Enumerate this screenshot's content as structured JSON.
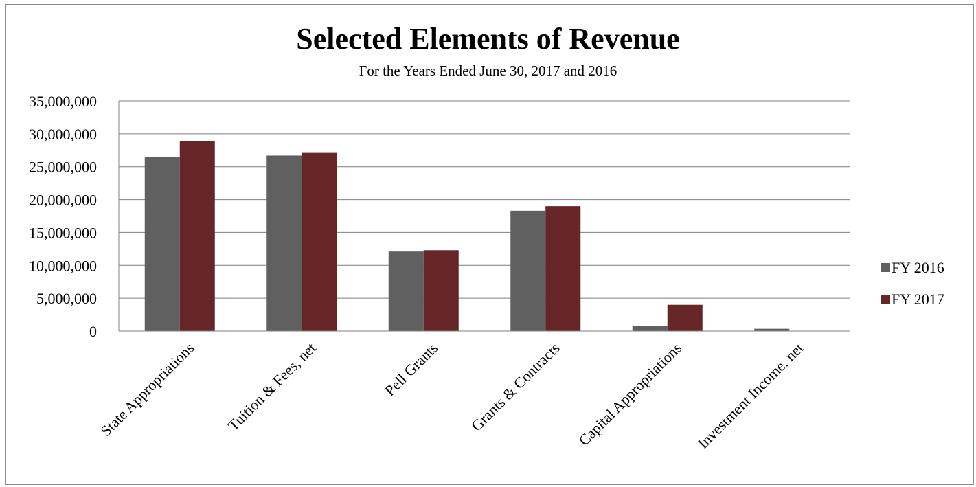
{
  "chart_data": {
    "type": "bar",
    "title": "Selected Elements of Revenue",
    "subtitle": "For the Years Ended June 30, 2017 and 2016",
    "categories": [
      "State Appropriations",
      "Tuition & Fees, net",
      "Pell Grants",
      "Grants & Contracts",
      "Capital Appropriations",
      "Investment Income, net"
    ],
    "series": [
      {
        "name": "FY 2016",
        "color": "#606060",
        "values": [
          26500000,
          26700000,
          12100000,
          18300000,
          800000,
          350000
        ]
      },
      {
        "name": "FY 2017",
        "color": "#662627",
        "values": [
          28900000,
          27100000,
          12300000,
          19000000,
          4000000,
          0
        ]
      }
    ],
    "ylim": [
      0,
      35000000
    ],
    "yticks": [
      0,
      5000000,
      10000000,
      15000000,
      20000000,
      25000000,
      30000000,
      35000000
    ],
    "ytick_labels": [
      "0",
      "5,000,000",
      "10,000,000",
      "15,000,000",
      "20,000,000",
      "25,000,000",
      "30,000,000",
      "35,000,000"
    ],
    "grid": true,
    "legend_position": "right",
    "xlabel": "",
    "ylabel": ""
  }
}
